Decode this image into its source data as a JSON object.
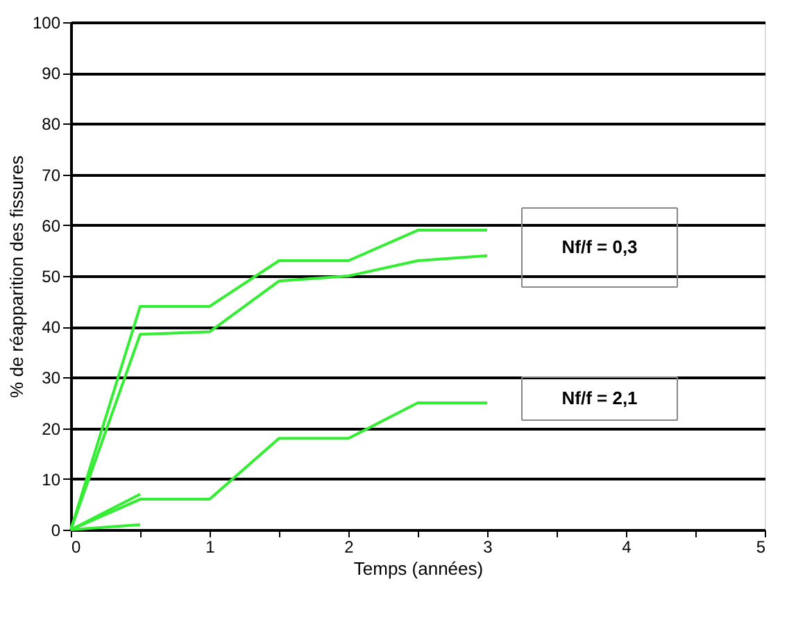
{
  "chart_data": {
    "type": "line",
    "xlabel": "Temps (années)",
    "ylabel": "% de réapparition des fissures",
    "xlim": [
      0,
      5
    ],
    "ylim": [
      0,
      100
    ],
    "xticks": [
      0,
      {
        "value": 0.5,
        "label": null
      },
      1,
      {
        "value": 1.5,
        "label": null
      },
      2,
      {
        "value": 2.5,
        "label": null
      },
      3,
      {
        "value": 3.5,
        "label": null
      },
      4,
      {
        "value": 4.5,
        "label": null
      },
      5
    ],
    "yticks": [
      0,
      10,
      20,
      30,
      40,
      50,
      60,
      70,
      80,
      90,
      100
    ],
    "grid": "y",
    "legend": false,
    "marker": "none",
    "line_style": "solid",
    "annotations": [
      "Nf/f = 0,3",
      "Nf/f = 2,1"
    ],
    "series": [
      {
        "color": "#33ee33",
        "x": [
          0,
          0.5,
          1,
          1.5,
          2,
          2.5,
          3
        ],
        "values": [
          0,
          44,
          44,
          53,
          53,
          59,
          59
        ]
      },
      {
        "color": "#33ee33",
        "x": [
          0,
          0.5,
          1,
          1.5,
          2,
          2.5,
          3
        ],
        "values": [
          0,
          38.5,
          39,
          49,
          50,
          53,
          54
        ]
      },
      {
        "color": "#33ee33",
        "x": [
          0,
          0.5,
          1,
          1.5,
          2,
          2.5,
          3
        ],
        "values": [
          0,
          6,
          6,
          18,
          18,
          25,
          25
        ]
      },
      {
        "color": "#33ee33",
        "x": [
          0,
          0.5
        ],
        "values": [
          0,
          7
        ]
      },
      {
        "color": "#33ee33",
        "x": [
          0,
          0.5
        ],
        "values": [
          0,
          1
        ]
      }
    ]
  }
}
